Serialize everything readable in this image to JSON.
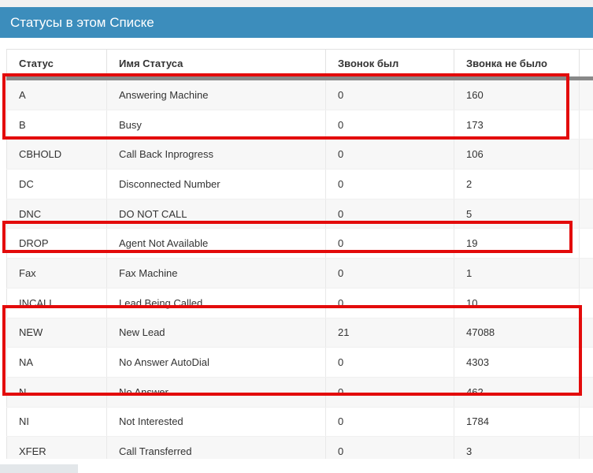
{
  "panel": {
    "title": "Статусы в этом Списке"
  },
  "table": {
    "columns": [
      "Статус",
      "Имя Статуса",
      "Звонок был",
      "Звонка не было"
    ],
    "rows": [
      {
        "status": "A",
        "name": "Answering Machine",
        "called": "0",
        "not_called": "160"
      },
      {
        "status": "B",
        "name": "Busy",
        "called": "0",
        "not_called": "173"
      },
      {
        "status": "CBHOLD",
        "name": "Call Back Inprogress",
        "called": "0",
        "not_called": "106"
      },
      {
        "status": "DC",
        "name": "Disconnected Number",
        "called": "0",
        "not_called": "2"
      },
      {
        "status": "DNC",
        "name": "DO NOT CALL",
        "called": "0",
        "not_called": "5"
      },
      {
        "status": "DROP",
        "name": "Agent Not Available",
        "called": "0",
        "not_called": "19"
      },
      {
        "status": "Fax",
        "name": "Fax Machine",
        "called": "0",
        "not_called": "1"
      },
      {
        "status": "INCALL",
        "name": "Lead Being Called",
        "called": "0",
        "not_called": "10"
      },
      {
        "status": "NEW",
        "name": "New Lead",
        "called": "21",
        "not_called": "47088"
      },
      {
        "status": "NA",
        "name": "No Answer AutoDial",
        "called": "0",
        "not_called": "4303"
      },
      {
        "status": "N",
        "name": "No Answer",
        "called": "0",
        "not_called": "462"
      },
      {
        "status": "NI",
        "name": "Not Interested",
        "called": "0",
        "not_called": "1784"
      },
      {
        "status": "XFER",
        "name": "Call Transferred",
        "called": "0",
        "not_called": "3"
      }
    ]
  },
  "annotations": {
    "color": "#e30b0b",
    "groups": [
      {
        "rows": [
          "A",
          "B"
        ]
      },
      {
        "rows": [
          "DROP"
        ]
      },
      {
        "rows": [
          "NEW",
          "NA",
          "N"
        ]
      }
    ]
  },
  "colors": {
    "panel_header_bg": "#3c8dbc",
    "panel_header_text": "#ffffff",
    "row_stripe": "#f7f7f7",
    "thead_divider": "#898989",
    "body_text": "#333333"
  }
}
